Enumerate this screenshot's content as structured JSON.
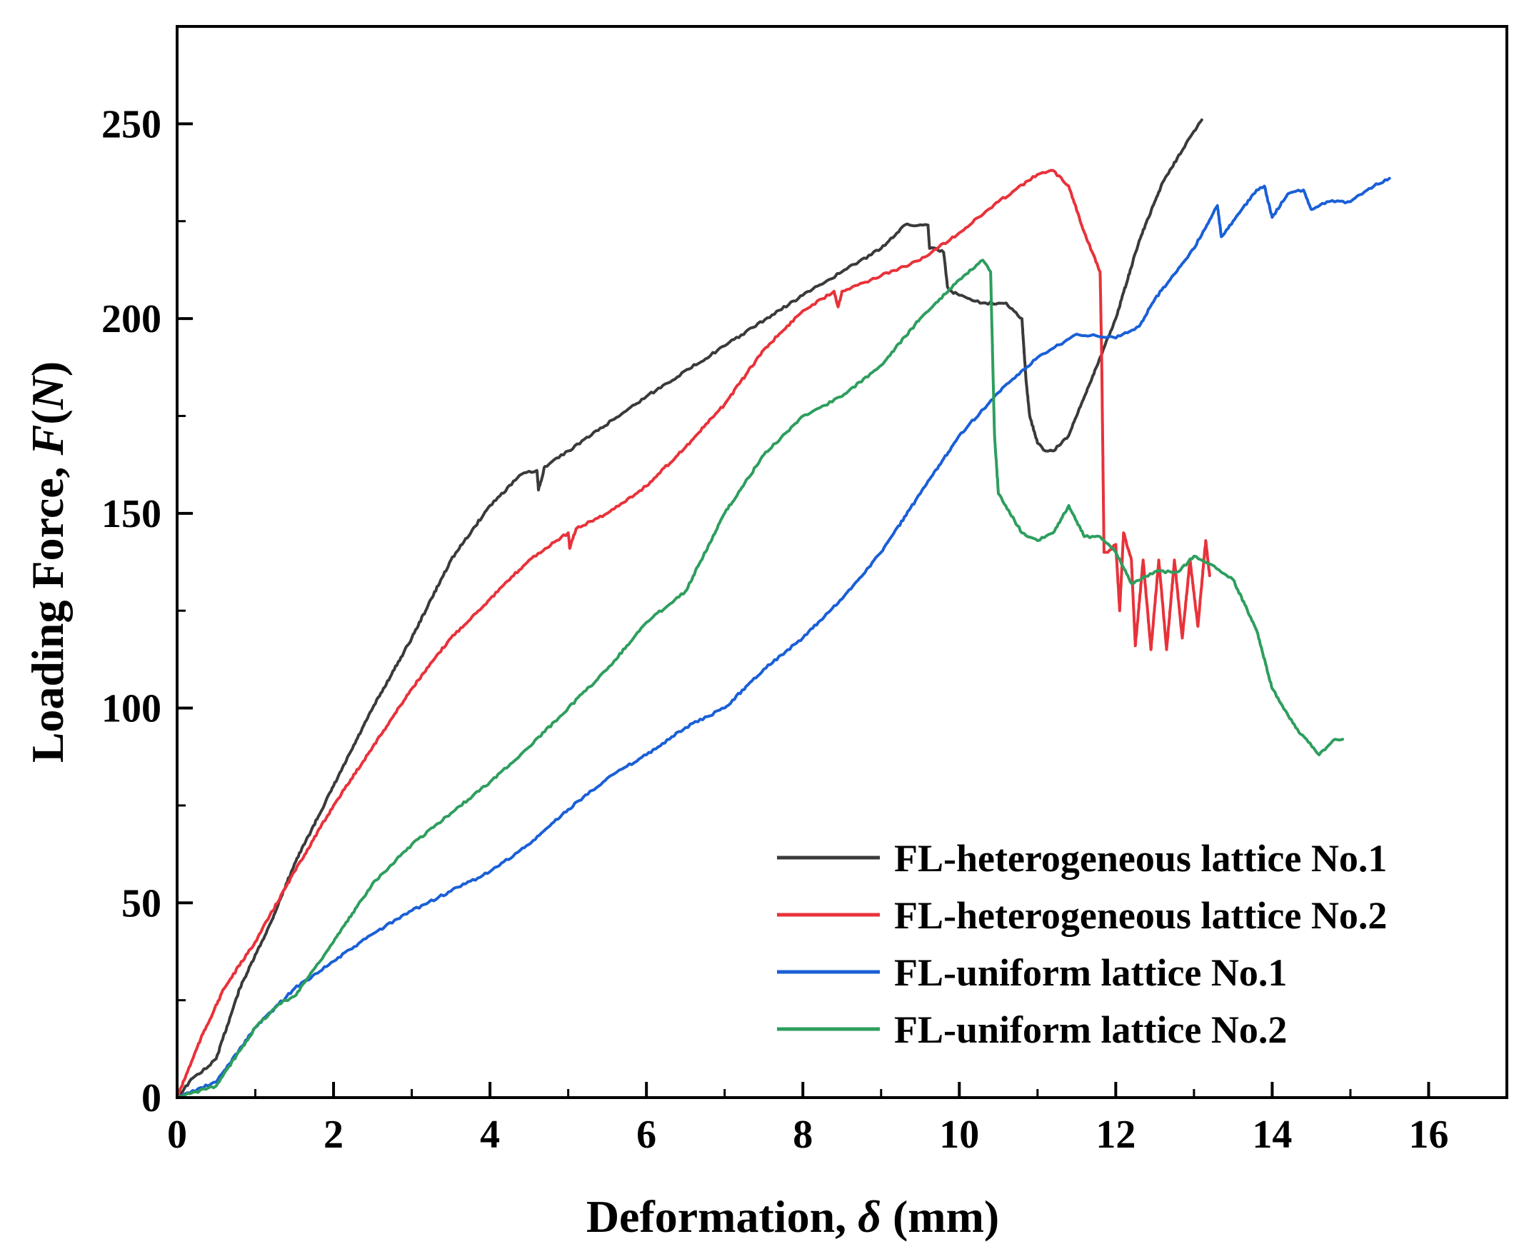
{
  "chart_data": {
    "type": "line",
    "title": "",
    "xlabel": "Deformation, δ (mm)",
    "xlabel_parts": {
      "main": "Deformation, ",
      "symbol": "δ",
      "unit": " (mm)"
    },
    "ylabel": "Loading Force, F(N)",
    "ylabel_parts": {
      "main": "Loading Force, ",
      "symbol": "F",
      "open": "(",
      "unit": "N",
      "close": ")"
    },
    "xlim": [
      0,
      17
    ],
    "ylim": [
      0,
      275
    ],
    "xticks": [
      0,
      2,
      4,
      6,
      8,
      10,
      12,
      14,
      16
    ],
    "xtick_labels": [
      "0",
      "2",
      "4",
      "6",
      "8",
      "10",
      "12",
      "14",
      "16"
    ],
    "yticks": [
      0,
      50,
      100,
      150,
      200,
      250
    ],
    "ytick_labels": [
      "0",
      "50",
      "100",
      "150",
      "200",
      "250"
    ],
    "grid": false,
    "legend_position": "bottom-right",
    "series": [
      {
        "name": "FL-heterogeneous lattice No.1",
        "color": "#3a3a3a",
        "x": [
          0,
          0.2,
          0.4,
          0.5,
          0.8,
          1.2,
          1.5,
          2,
          2.5,
          3,
          3.5,
          4,
          4.4,
          4.6,
          4.62,
          4.7,
          5,
          6,
          7,
          8,
          8.5,
          9,
          9.3,
          9.6,
          9.62,
          9.7,
          9.8,
          9.85,
          9.9,
          10,
          10.3,
          10.6,
          10.8,
          10.85,
          10.9,
          11,
          11.1,
          11.2,
          11.4,
          11.6,
          11.8,
          12,
          12.3,
          12.6,
          12.9,
          13.1
        ],
        "y": [
          0,
          5,
          8,
          10,
          28,
          45,
          60,
          80,
          100,
          118,
          138,
          152,
          160,
          161,
          156,
          162,
          166,
          180,
          193,
          206,
          212,
          218,
          224,
          224,
          218,
          218,
          217,
          208,
          207,
          206,
          204,
          204,
          200,
          185,
          175,
          168,
          166,
          166,
          170,
          180,
          190,
          200,
          220,
          235,
          245,
          251
        ]
      },
      {
        "name": "FL-heterogeneous lattice No.2",
        "color": "#e8323a",
        "x": [
          0,
          0.3,
          0.6,
          1,
          1.5,
          2,
          2.5,
          3,
          3.5,
          4,
          4.5,
          5,
          5.02,
          5.1,
          5.5,
          6,
          6.5,
          7,
          7.5,
          8,
          8.4,
          8.45,
          8.5,
          9,
          9.5,
          10,
          10.5,
          11,
          11.2,
          11.4,
          11.6,
          11.8,
          11.82,
          11.85,
          11.9,
          12,
          12.05,
          12.1,
          12.2,
          12.25,
          12.35,
          12.45,
          12.55,
          12.65,
          12.75,
          12.85,
          12.95,
          13.05,
          13.15,
          13.2
        ],
        "y": [
          0,
          15,
          28,
          40,
          58,
          75,
          90,
          105,
          118,
          128,
          138,
          145,
          141,
          146,
          150,
          157,
          167,
          178,
          192,
          202,
          207,
          203,
          207,
          211,
          215,
          222,
          230,
          237,
          238,
          234,
          222,
          212,
          190,
          140,
          140,
          142,
          125,
          145,
          138,
          116,
          138,
          115,
          138,
          115,
          138,
          118,
          138,
          121,
          143,
          134
        ]
      },
      {
        "name": "FL-uniform lattice No.1",
        "color": "#1a5fd6",
        "x": [
          0,
          0.5,
          1,
          1.5,
          2,
          2.5,
          3,
          3.5,
          4,
          4.5,
          5,
          5.5,
          6,
          6.5,
          7,
          7.5,
          8,
          8.5,
          9,
          9.5,
          10,
          10.5,
          11,
          11.5,
          12,
          12.3,
          12.5,
          13,
          13.3,
          13.35,
          13.5,
          13.8,
          13.9,
          14,
          14.2,
          14.4,
          14.5,
          14.7,
          15,
          15.3,
          15.5
        ],
        "y": [
          0,
          4,
          18,
          28,
          35,
          42,
          48,
          53,
          58,
          65,
          74,
          82,
          88,
          95,
          100,
          110,
          118,
          128,
          140,
          155,
          170,
          181,
          190,
          196,
          195,
          198,
          205,
          218,
          229,
          221,
          225,
          233,
          234,
          226,
          232,
          233,
          228,
          230,
          230,
          234,
          236
        ]
      },
      {
        "name": "FL-uniform lattice No.2",
        "color": "#2e9e5e",
        "x": [
          0,
          0.5,
          0.8,
          1,
          1.3,
          1.5,
          2,
          2.5,
          3,
          3.5,
          4,
          4.5,
          5,
          5.5,
          6,
          6.5,
          7,
          7.5,
          8,
          8.5,
          9,
          9.5,
          10,
          10.3,
          10.4,
          10.45,
          10.5,
          10.8,
          11,
          11.2,
          11.4,
          11.5,
          11.6,
          11.8,
          12,
          12.2,
          12.5,
          12.8,
          13,
          13.2,
          13.5,
          13.8,
          14,
          14.3,
          14.6,
          14.7,
          14.8,
          14.9
        ],
        "y": [
          0,
          3,
          12,
          18,
          24,
          26,
          40,
          55,
          65,
          73,
          81,
          90,
          100,
          110,
          122,
          130,
          150,
          165,
          175,
          180,
          188,
          200,
          210,
          215,
          212,
          170,
          155,
          145,
          143,
          145,
          152,
          148,
          144,
          144,
          140,
          132,
          135,
          135,
          139,
          137,
          133,
          120,
          105,
          95,
          88,
          90,
          92,
          92
        ]
      }
    ]
  }
}
